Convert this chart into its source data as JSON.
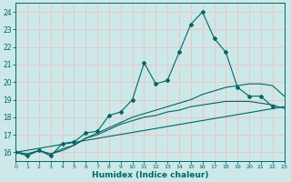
{
  "xlabel": "Humidex (Indice chaleur)",
  "xlim": [
    0,
    23
  ],
  "ylim": [
    15.5,
    24.5
  ],
  "xticks": [
    0,
    1,
    2,
    3,
    4,
    5,
    6,
    7,
    8,
    9,
    10,
    11,
    12,
    13,
    14,
    15,
    16,
    17,
    18,
    19,
    20,
    21,
    22,
    23
  ],
  "yticks": [
    16,
    17,
    18,
    19,
    20,
    21,
    22,
    23,
    24
  ],
  "bg_color": "#cce8e8",
  "grid_color": "#e8c8c8",
  "line_color": "#006666",
  "line1_x": [
    0,
    1,
    2,
    3,
    4,
    5,
    6,
    7,
    8,
    9,
    10,
    11,
    12,
    13,
    14,
    15,
    16,
    17,
    18,
    19,
    20,
    21,
    22
  ],
  "line1_y": [
    16.0,
    15.8,
    16.1,
    15.8,
    16.5,
    16.6,
    17.1,
    17.2,
    18.1,
    18.3,
    19.0,
    21.1,
    19.9,
    20.1,
    21.7,
    23.3,
    24.0,
    22.5,
    21.7,
    19.7,
    19.2,
    19.2,
    18.6
  ],
  "line2_x": [
    0,
    1,
    2,
    3,
    4,
    5,
    6,
    7,
    8,
    9,
    10,
    11,
    12,
    13,
    14,
    15,
    16,
    17,
    18,
    19,
    20,
    21,
    22,
    23
  ],
  "line2_y": [
    16.0,
    15.9,
    16.1,
    15.9,
    16.1,
    16.4,
    16.8,
    17.1,
    17.4,
    17.7,
    18.0,
    18.2,
    18.4,
    18.6,
    18.8,
    19.0,
    19.3,
    19.5,
    19.7,
    19.8,
    19.9,
    19.9,
    19.8,
    19.2
  ],
  "line3_x": [
    0,
    23
  ],
  "line3_y": [
    16.0,
    18.6
  ],
  "line4_x": [
    0,
    1,
    2,
    3,
    4,
    5,
    6,
    7,
    8,
    9,
    10,
    11,
    12,
    13,
    14,
    15,
    16,
    17,
    18,
    19,
    20,
    21,
    22,
    23
  ],
  "line4_y": [
    16.0,
    15.9,
    16.1,
    15.9,
    16.2,
    16.4,
    16.8,
    17.0,
    17.3,
    17.6,
    17.8,
    18.0,
    18.1,
    18.3,
    18.4,
    18.6,
    18.7,
    18.8,
    18.9,
    18.9,
    18.9,
    18.8,
    18.7,
    18.5
  ]
}
